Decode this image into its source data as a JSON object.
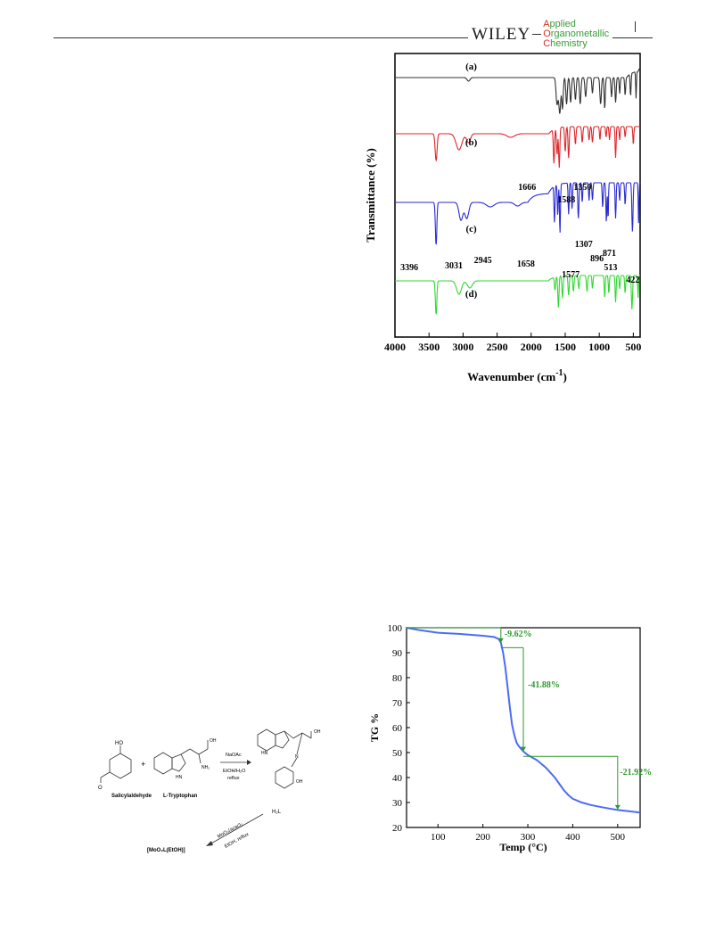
{
  "header": {
    "publisher": "WILEY",
    "journal_lines": [
      {
        "first": "A",
        "rest": "pplied"
      },
      {
        "first": "O",
        "rest": "rganometallic"
      },
      {
        "first": "C",
        "rest": "hemistry"
      }
    ]
  },
  "colors": {
    "black": "#333333",
    "red": "#e0262a",
    "blue": "#2a2ad6",
    "green": "#30d830",
    "tg": "#4a6cf7",
    "annot": "#2e9a2e"
  },
  "chart_data": [
    {
      "type": "line",
      "xlabel": "Wavenumber (cm",
      "xlabel_sup": "-1",
      "xlabel_end": ")",
      "ylabel": "Transmittance (%)",
      "xlim": [
        4000,
        400
      ],
      "xticks": [
        4000,
        3500,
        3000,
        2500,
        2000,
        1500,
        1000,
        500
      ],
      "series": [
        {
          "label": "(a)",
          "color": "#333333"
        },
        {
          "label": "(b)",
          "color": "#e0262a"
        },
        {
          "label": "(c)",
          "color": "#2a2ad6"
        },
        {
          "label": "(d)",
          "color": "#30d830"
        }
      ],
      "annotations": [
        {
          "text": "1666",
          "x": 1666
        },
        {
          "text": "1588",
          "x": 1588
        },
        {
          "text": "1350",
          "x": 1350
        },
        {
          "text": "1307",
          "x": 1307
        },
        {
          "text": "896",
          "x": 896
        },
        {
          "text": "871",
          "x": 871
        },
        {
          "text": "3396",
          "x": 3396
        },
        {
          "text": "3031",
          "x": 3031
        },
        {
          "text": "2945",
          "x": 2945
        },
        {
          "text": "1658",
          "x": 1658
        },
        {
          "text": "1577",
          "x": 1577
        },
        {
          "text": "513",
          "x": 513
        },
        {
          "text": "422",
          "x": 422
        }
      ]
    },
    {
      "type": "line",
      "xlabel": "Temp (°C)",
      "ylabel": "TG %",
      "xlim": [
        30,
        550
      ],
      "ylim": [
        20,
        100
      ],
      "xticks": [
        100,
        200,
        300,
        400,
        500
      ],
      "yticks": [
        20,
        30,
        40,
        50,
        60,
        70,
        80,
        90,
        100
      ],
      "series": [
        {
          "x": [
            30,
            60,
            100,
            150,
            200,
            225,
            235,
            240,
            245,
            250,
            255,
            260,
            265,
            270,
            275,
            280,
            285,
            290,
            300,
            320,
            340,
            360,
            370,
            380,
            390,
            400,
            420,
            440,
            460,
            480,
            500,
            520,
            550
          ],
          "y": [
            100,
            99,
            98,
            97.5,
            96.8,
            96.3,
            95.5,
            94,
            90,
            84,
            76,
            68,
            61,
            57,
            54,
            52.5,
            51.5,
            50.5,
            49,
            47,
            44,
            40,
            37.5,
            35,
            33,
            31.5,
            30,
            29,
            28.3,
            27.6,
            27,
            26.6,
            26
          ]
        }
      ],
      "annotations": [
        "-9.62%",
        "-41.88%",
        "-21.92%"
      ]
    }
  ],
  "scheme": {
    "salicylaldehyde": "Salicylaldehyde",
    "tryptophan": "L-Tryptophan",
    "plus": "+",
    "reagent1": "NaOAc",
    "conditions1a": "EtOH/H₂O",
    "conditions1b": "reflux",
    "ligand": "H₂L",
    "reagent2": "MoO₂(acac)₂",
    "conditions2": "EtOH, reflux",
    "product": "[MoO₂L(EtOH)]",
    "ho": "HO",
    "oh": "OH",
    "o": "O",
    "nh2": "NH₂",
    "hn": "HN",
    "n": "N"
  }
}
